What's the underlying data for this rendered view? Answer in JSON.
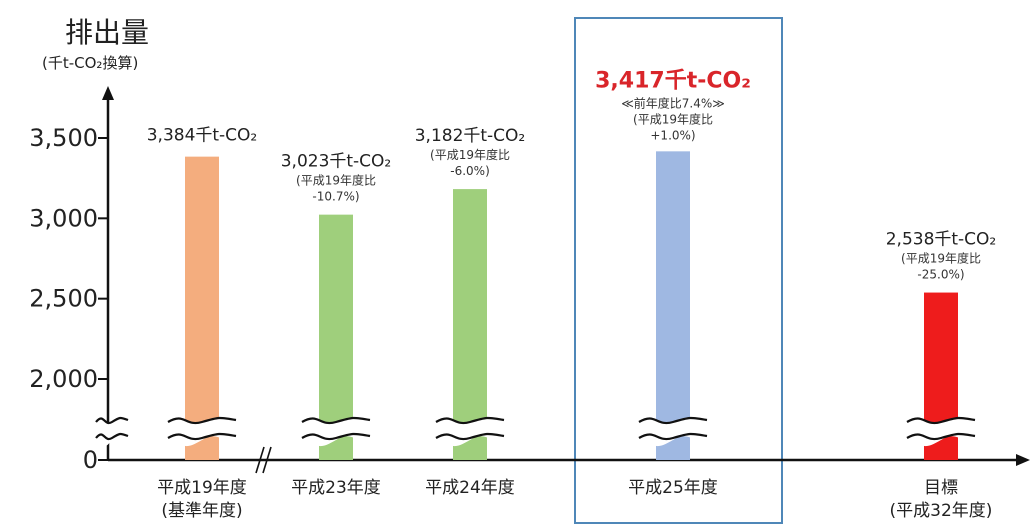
{
  "chart_data": {
    "type": "bar",
    "title": "排出量",
    "ylabel": "(千t-CO₂換算)",
    "yticks": [
      0,
      2000,
      2500,
      3000,
      3500
    ],
    "ytick_labels": [
      "0",
      "2,000",
      "2,500",
      "3,000",
      "3,500"
    ],
    "axis_break": true,
    "categories": [
      {
        "label": "平成19年度",
        "label2": "(基準年度)"
      },
      {
        "label": "平成23年度",
        "label2": ""
      },
      {
        "label": "平成24年度",
        "label2": ""
      },
      {
        "label": "平成25年度",
        "label2": ""
      },
      {
        "label": "目標",
        "label2": "(平成32年度)"
      }
    ],
    "values": [
      3384,
      3023,
      3182,
      3417,
      2538
    ],
    "bar_colors": [
      "#f4ad7e",
      "#9fcf7c",
      "#9fcf7c",
      "#9fb8e2",
      "#ee1c1c"
    ],
    "value_labels": [
      {
        "main": "3,384千t-CO₂",
        "sub": []
      },
      {
        "main": "3,023千t-CO₂",
        "sub": [
          "(平成19年度比",
          "-10.7%)"
        ]
      },
      {
        "main": "3,182千t-CO₂",
        "sub": [
          "(平成19年度比",
          "-6.0%)"
        ]
      },
      {
        "main": "3,417千t-CO₂",
        "sub": [
          "≪前年度比7.4%≫",
          "(平成19年度比",
          "+1.0%)"
        ]
      },
      {
        "main": "2,538千t-CO₂",
        "sub": [
          "(平成19年度比",
          "-25.0%)"
        ]
      }
    ],
    "highlight_index": 3,
    "highlight_color": "#d9252a",
    "highlight_box_color": "#4f87b8"
  }
}
